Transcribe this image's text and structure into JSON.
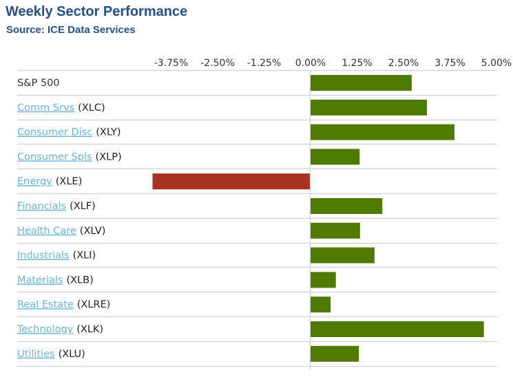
{
  "header": {
    "title": "Weekly Sector Performance",
    "subtitle": "Source: ICE Data Services"
  },
  "colors": {
    "positive": "#4f7a00",
    "negative": "#a8301e",
    "link": "#6ab4dc",
    "title": "#24508f",
    "gridline": "#d6d6d6"
  },
  "chart_data": {
    "type": "bar",
    "orientation": "horizontal",
    "title": "Weekly Sector Performance",
    "subtitle": "Source: ICE Data Services",
    "xlabel": "",
    "ylabel": "",
    "xlim": [
      -4.25,
      5.0
    ],
    "x_ticks": [
      -3.75,
      -2.5,
      -1.25,
      0.0,
      1.25,
      2.5,
      3.75,
      5.0
    ],
    "x_tick_labels": [
      "-3.75%",
      "-2.50%",
      "-1.25%",
      "0.00%",
      "1.25%",
      "2.50%",
      "3.75%",
      "5.00%"
    ],
    "x_tick_position": "top",
    "grid": "horizontal row separators",
    "legend": "none",
    "categories": [
      {
        "name": "S&P 500",
        "ticker": "",
        "link": false
      },
      {
        "name": "Comm Srvs",
        "ticker": "(XLC)",
        "link": true
      },
      {
        "name": "Consumer Disc",
        "ticker": "(XLY)",
        "link": true
      },
      {
        "name": "Consumer Spls",
        "ticker": "(XLP)",
        "link": true
      },
      {
        "name": "Energy",
        "ticker": "(XLE)",
        "link": true
      },
      {
        "name": "Financials",
        "ticker": "(XLF)",
        "link": true
      },
      {
        "name": "Health Care",
        "ticker": "(XLV)",
        "link": true
      },
      {
        "name": "Industrials",
        "ticker": "(XLI)",
        "link": true
      },
      {
        "name": "Materials",
        "ticker": "(XLB)",
        "link": true
      },
      {
        "name": "Real Estate",
        "ticker": "(XLRE)",
        "link": true
      },
      {
        "name": "Technology",
        "ticker": "(XLK)",
        "link": true
      },
      {
        "name": "Utilities",
        "ticker": "(XLU)",
        "link": true
      }
    ],
    "values": [
      2.72,
      3.13,
      3.87,
      1.32,
      -4.25,
      1.93,
      1.33,
      1.72,
      0.68,
      0.54,
      4.66,
      1.3
    ],
    "unit": "%"
  }
}
